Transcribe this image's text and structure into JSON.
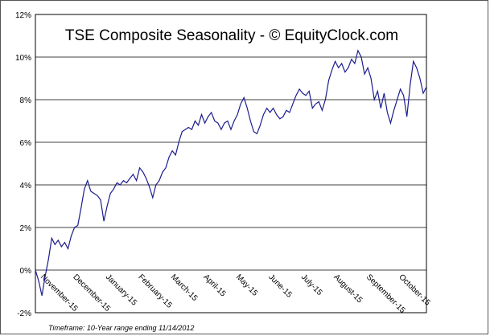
{
  "chart_data": {
    "type": "line",
    "title": "TSE Composite Seasonality - © EquityClock.com",
    "footnote": "Timeframe: 10-Year range ending 11/14/2012",
    "categories": [
      "November-15",
      null,
      null,
      null,
      null,
      null,
      null,
      null,
      null,
      null,
      "December-15",
      null,
      null,
      null,
      null,
      null,
      null,
      null,
      null,
      null,
      "January-15",
      null,
      null,
      null,
      null,
      null,
      null,
      null,
      null,
      null,
      "February-15",
      null,
      null,
      null,
      null,
      null,
      null,
      null,
      null,
      null,
      "March-15",
      null,
      null,
      null,
      null,
      null,
      null,
      null,
      null,
      null,
      "April-15",
      null,
      null,
      null,
      null,
      null,
      null,
      null,
      null,
      null,
      "May-15",
      null,
      null,
      null,
      null,
      null,
      null,
      null,
      null,
      null,
      "June-15",
      null,
      null,
      null,
      null,
      null,
      null,
      null,
      null,
      null,
      "July-15",
      null,
      null,
      null,
      null,
      null,
      null,
      null,
      null,
      null,
      "August-15",
      null,
      null,
      null,
      null,
      null,
      null,
      null,
      null,
      null,
      "September-15",
      null,
      null,
      null,
      null,
      null,
      null,
      null,
      null,
      null,
      "October-15",
      null,
      null,
      null,
      null,
      null,
      null,
      null,
      null,
      null,
      null
    ],
    "series": [
      {
        "name": "TSE Composite",
        "color": "#1c1c8f",
        "values": [
          0,
          -0.5,
          -1.2,
          -0.3,
          0.5,
          1.5,
          1.2,
          1.4,
          1.1,
          1.3,
          1.0,
          1.6,
          2.0,
          2.1,
          2.9,
          3.8,
          4.2,
          3.7,
          3.6,
          3.5,
          3.3,
          2.3,
          3.0,
          3.6,
          3.8,
          4.1,
          4.0,
          4.2,
          4.1,
          4.3,
          4.5,
          4.2,
          4.8,
          4.6,
          4.3,
          3.9,
          3.4,
          4.0,
          4.2,
          4.6,
          4.8,
          5.3,
          5.6,
          5.4,
          6.0,
          6.5,
          6.6,
          6.7,
          6.6,
          7.0,
          6.8,
          7.3,
          6.9,
          7.2,
          7.4,
          7.0,
          6.9,
          6.6,
          6.9,
          7.0,
          6.6,
          7.0,
          7.3,
          7.8,
          8.1,
          7.6,
          7.0,
          6.5,
          6.4,
          6.8,
          7.3,
          7.6,
          7.4,
          7.6,
          7.3,
          7.1,
          7.2,
          7.5,
          7.4,
          7.8,
          8.2,
          8.5,
          8.3,
          8.2,
          8.4,
          7.6,
          7.8,
          7.9,
          7.5,
          8.0,
          8.9,
          9.4,
          9.8,
          9.5,
          9.7,
          9.3,
          9.5,
          9.9,
          9.7,
          10.3,
          10.0,
          9.2,
          9.5,
          9.0,
          8.0,
          8.4,
          7.6,
          8.3,
          7.4,
          6.9,
          7.5,
          8.0,
          8.5,
          8.2,
          7.2,
          8.7,
          9.8,
          9.5,
          9.0,
          8.3,
          8.6
        ]
      }
    ],
    "ylim": [
      -2,
      12
    ],
    "yticks": [
      {
        "value": -2,
        "label": "-2%"
      },
      {
        "value": 0,
        "label": "0%"
      },
      {
        "value": 2,
        "label": "2%"
      },
      {
        "value": 4,
        "label": "4%"
      },
      {
        "value": 6,
        "label": "6%"
      },
      {
        "value": 8,
        "label": "8%"
      },
      {
        "value": 10,
        "label": "10%"
      },
      {
        "value": 12,
        "label": "12%"
      }
    ],
    "grid": true
  }
}
